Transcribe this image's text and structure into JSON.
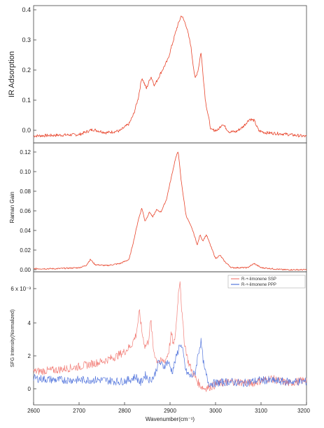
{
  "chart_data": [
    {
      "type": "line",
      "ylabel": "IR Adsorption",
      "xlim": [
        2600,
        3200
      ],
      "ylim": [
        -0.03,
        0.4
      ],
      "y_ticks": [
        "0.4",
        "0.3",
        "0.2",
        "0.1",
        "0.0"
      ],
      "series": [
        {
          "color": "#e8452c",
          "x": [
            2600,
            2650,
            2700,
            2730,
            2760,
            2790,
            2810,
            2820,
            2830,
            2838,
            2848,
            2858,
            2866,
            2880,
            2895,
            2905,
            2915,
            2925,
            2935,
            2945,
            2955,
            2962,
            2968,
            2978,
            2990,
            3005,
            3015,
            3030,
            3045,
            3060,
            3075,
            3085,
            3095,
            3110,
            3150,
            3200
          ],
          "y": [
            -0.008,
            -0.006,
            -0.004,
            0.012,
            0.002,
            0.008,
            0.03,
            0.06,
            0.11,
            0.175,
            0.14,
            0.178,
            0.15,
            0.19,
            0.23,
            0.28,
            0.33,
            0.37,
            0.34,
            0.28,
            0.17,
            0.2,
            0.255,
            0.1,
            0.01,
            0.01,
            0.03,
            0.005,
            0.005,
            0.02,
            0.045,
            0.04,
            0.008,
            0.002,
            -0.002,
            -0.01
          ]
        }
      ]
    },
    {
      "type": "line",
      "ylabel": "Raman Gain",
      "xlim": [
        2600,
        3200
      ],
      "ylim": [
        0,
        0.125
      ],
      "y_ticks": [
        "0.12",
        "0.10",
        "0.08",
        "0.06",
        "0.04",
        "0.02",
        "0.00"
      ],
      "series": [
        {
          "color": "#e8452c",
          "x": [
            2600,
            2650,
            2700,
            2715,
            2725,
            2735,
            2760,
            2790,
            2810,
            2820,
            2830,
            2838,
            2845,
            2855,
            2862,
            2870,
            2880,
            2892,
            2902,
            2912,
            2918,
            2924,
            2935,
            2950,
            2960,
            2966,
            2972,
            2980,
            2986,
            2992,
            3000,
            3010,
            3020,
            3035,
            3050,
            3070,
            3085,
            3100,
            3150,
            3200
          ],
          "y": [
            0.003,
            0.003,
            0.004,
            0.006,
            0.012,
            0.007,
            0.006,
            0.008,
            0.012,
            0.03,
            0.05,
            0.062,
            0.049,
            0.058,
            0.053,
            0.06,
            0.058,
            0.07,
            0.09,
            0.11,
            0.117,
            0.09,
            0.055,
            0.04,
            0.026,
            0.036,
            0.03,
            0.036,
            0.029,
            0.022,
            0.013,
            0.016,
            0.01,
            0.004,
            0.004,
            0.004,
            0.008,
            0.004,
            0.002,
            0.002
          ]
        }
      ]
    },
    {
      "type": "line",
      "ylabel": "SFG Intensity(Normalized)",
      "xlabel": "Wavenumber(cm⁻¹)",
      "xlim": [
        2600,
        3200
      ],
      "ylim": [
        -1,
        7
      ],
      "y_ticks": [
        "6 x 10⁻³",
        "4",
        "2",
        "0"
      ],
      "x_ticks": [
        "2600",
        "2700",
        "2800",
        "2900",
        "3000",
        "3100",
        "3200"
      ],
      "legend_position": "top-right",
      "series": [
        {
          "name": "R-+-limonene SSP",
          "color": "#f2807a",
          "x": [
            2600,
            2650,
            2700,
            2750,
            2780,
            2800,
            2815,
            2825,
            2833,
            2838,
            2845,
            2852,
            2858,
            2863,
            2870,
            2880,
            2890,
            2897,
            2903,
            2908,
            2913,
            2918,
            2922,
            2926,
            2932,
            2940,
            2950,
            2965,
            2975,
            2990,
            3010,
            3040,
            3080,
            3120,
            3160,
            3200
          ],
          "y": [
            1.0,
            1.1,
            1.3,
            1.6,
            1.9,
            2.2,
            2.6,
            3.2,
            4.6,
            3.4,
            2.5,
            2.8,
            4.1,
            2.4,
            1.7,
            1.6,
            1.7,
            2.2,
            3.3,
            2.5,
            3.6,
            5.6,
            6.6,
            4.5,
            2.7,
            1.6,
            0.9,
            0.2,
            0.0,
            0.1,
            0.3,
            0.4,
            0.3,
            0.6,
            0.3,
            0.5
          ]
        },
        {
          "name": "R-+-limonene PPP",
          "color": "#5577dd",
          "x": [
            2600,
            2650,
            2700,
            2750,
            2790,
            2810,
            2825,
            2835,
            2845,
            2855,
            2865,
            2875,
            2885,
            2895,
            2905,
            2915,
            2922,
            2928,
            2935,
            2945,
            2955,
            2962,
            2968,
            2975,
            2985,
            3000,
            3030,
            3060,
            3100,
            3150,
            3200
          ],
          "y": [
            0.6,
            0.5,
            0.5,
            0.5,
            0.4,
            0.5,
            0.7,
            0.3,
            0.8,
            0.5,
            0.7,
            1.6,
            1.3,
            1.6,
            1.0,
            2.0,
            2.7,
            2.2,
            1.0,
            0.7,
            0.9,
            2.1,
            2.8,
            1.2,
            0.3,
            0.3,
            0.4,
            0.3,
            0.5,
            0.4,
            0.4
          ]
        }
      ]
    }
  ]
}
